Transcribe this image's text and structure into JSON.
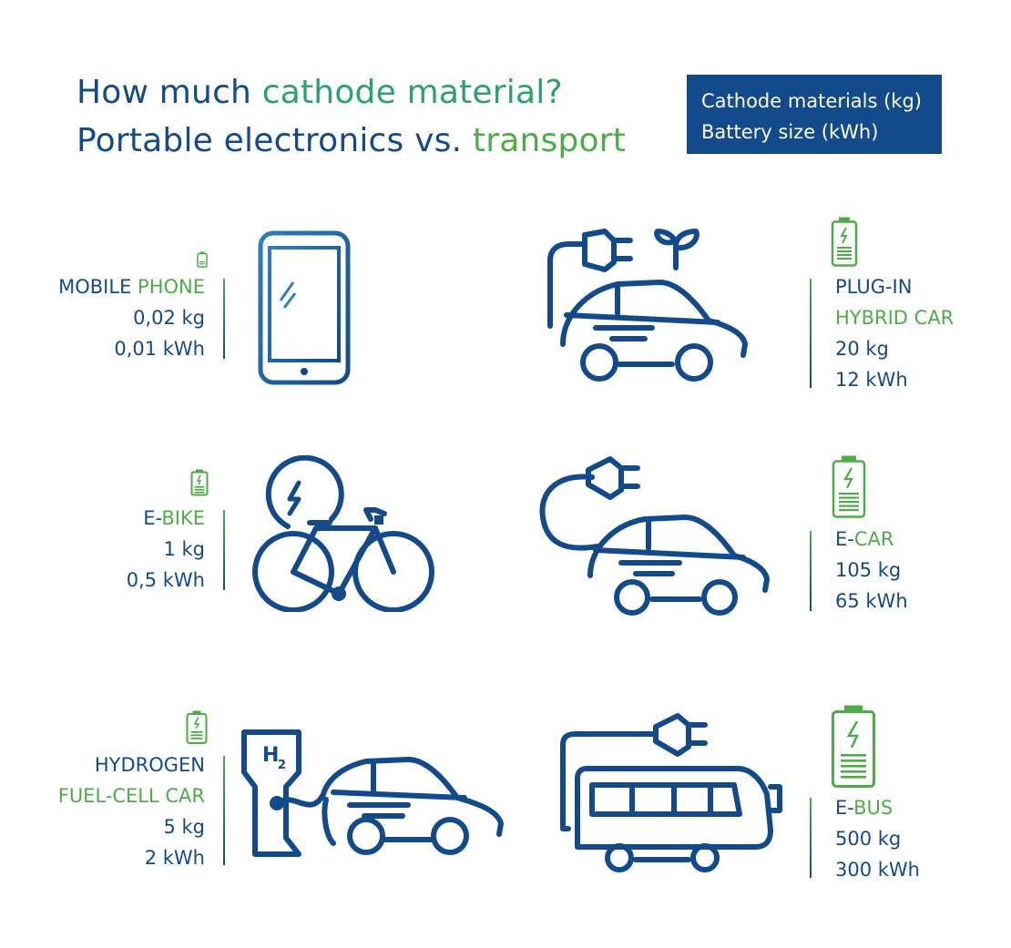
{
  "title": {
    "line1_a": "How much ",
    "line1_b": "cathode material?",
    "line2_a": "Portable electronics vs. ",
    "line2_b": "transport"
  },
  "legend": {
    "line1": "Cathode materials (kg)",
    "line2": "Battery size (kWh)"
  },
  "colors": {
    "blue": "#124a8c",
    "green": "#4cad46",
    "legend_bg": "#124a8c"
  },
  "items": [
    {
      "id": "mobile-phone",
      "name_a": "MOBILE ",
      "name_b": "PHONE",
      "mass": "0,02 kg",
      "energy": "0,01 kWh",
      "icon": "smartphone-icon"
    },
    {
      "id": "e-bike",
      "name_a": "E-",
      "name_b": "BIKE",
      "mass": "1 kg",
      "energy": "0,5 kWh",
      "icon": "e-bike-icon"
    },
    {
      "id": "hydrogen-car",
      "name_a": "HYDROGEN",
      "name_b": "FUEL-CELL CAR",
      "mass": "5 kg",
      "energy": "2 kWh",
      "icon": "hydrogen-car-icon"
    },
    {
      "id": "plug-in-hybrid",
      "name_a": "PLUG-IN",
      "name_b": "HYBRID CAR",
      "mass": "20 kg",
      "energy": "12 kWh",
      "icon": "plug-in-hybrid-car-icon"
    },
    {
      "id": "e-car",
      "name_a": "E-",
      "name_b": "CAR",
      "mass": "105 kg",
      "energy": "65 kWh",
      "icon": "electric-car-icon"
    },
    {
      "id": "e-bus",
      "name_a": "E-",
      "name_b": "BUS",
      "mass": "500 kg",
      "energy": "300 kWh",
      "icon": "electric-bus-icon"
    }
  ]
}
